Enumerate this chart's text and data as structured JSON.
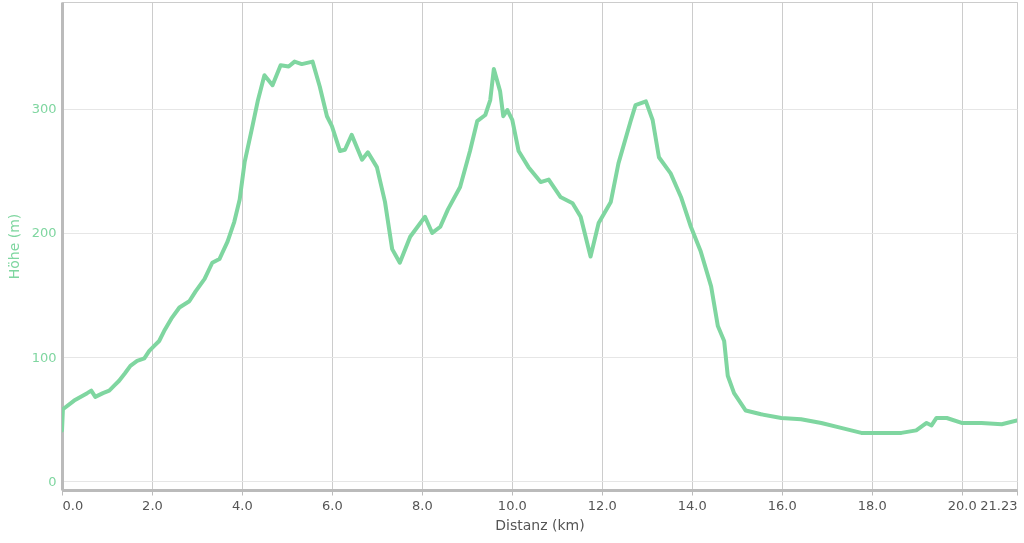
{
  "chart_data": {
    "type": "line",
    "xlabel": "Distanz (km)",
    "ylabel": "Höhe (m)",
    "grid": true,
    "marker": "none",
    "line_style": "solid",
    "xlim": [
      0,
      21.23
    ],
    "ylim": [
      -7,
      386
    ],
    "xticks": [
      {
        "value": 0,
        "label": "0.0"
      },
      {
        "value": 2,
        "label": "2.0"
      },
      {
        "value": 4,
        "label": "4.0"
      },
      {
        "value": 6,
        "label": "6.0"
      },
      {
        "value": 8,
        "label": "8.0"
      },
      {
        "value": 10,
        "label": "10.0"
      },
      {
        "value": 12,
        "label": "12.0"
      },
      {
        "value": 14,
        "label": "14.0"
      },
      {
        "value": 16,
        "label": "16.0"
      },
      {
        "value": 18,
        "label": "18.0"
      },
      {
        "value": 20,
        "label": "20.0"
      },
      21.23
    ],
    "yticks": [
      0,
      100,
      200,
      300
    ],
    "series": [
      {
        "color": "#7fd6a0",
        "x": [
          0,
          0.02,
          0.27,
          0.56,
          0.65,
          0.74,
          0.91,
          1.05,
          1.16,
          1.27,
          1.4,
          1.52,
          1.67,
          1.83,
          1.94,
          2.05,
          2.16,
          2.27,
          2.43,
          2.61,
          2.83,
          2.97,
          3.17,
          3.34,
          3.5,
          3.68,
          3.83,
          3.95,
          4.06,
          4.21,
          4.35,
          4.5,
          4.68,
          4.86,
          5.04,
          5.17,
          5.33,
          5.57,
          5.73,
          5.89,
          6.0,
          6.18,
          6.29,
          6.44,
          6.67,
          6.8,
          7.0,
          7.18,
          7.34,
          7.51,
          7.74,
          8.07,
          8.23,
          8.41,
          8.58,
          8.85,
          9.07,
          9.23,
          9.41,
          9.52,
          9.6,
          9.74,
          9.81,
          9.9,
          10.01,
          10.15,
          10.37,
          10.64,
          10.82,
          11.08,
          11.35,
          11.53,
          11.75,
          11.93,
          12.2,
          12.37,
          12.64,
          12.75,
          12.98,
          13.13,
          13.27,
          13.53,
          13.76,
          13.98,
          14.2,
          14.43,
          14.58,
          14.72,
          14.8,
          14.94,
          15.2,
          15.54,
          15.99,
          16.43,
          16.88,
          17.32,
          17.77,
          18.22,
          18.66,
          18.99,
          19.22,
          19.33,
          19.44,
          19.67,
          20.0,
          20.44,
          20.89,
          21.23
        ],
        "values": [
          41,
          58,
          65,
          71,
          73,
          68,
          71,
          73,
          77,
          81,
          87,
          93,
          97,
          99,
          105,
          109,
          113,
          121,
          131,
          140,
          145,
          153,
          163,
          176,
          179,
          193,
          209,
          227,
          257,
          282,
          306,
          327,
          319,
          335,
          334,
          338,
          336,
          338,
          318,
          294,
          286,
          266,
          267,
          279,
          259,
          265,
          253,
          225,
          187,
          176,
          197,
          213,
          200,
          205,
          219,
          237,
          266,
          290,
          295,
          307,
          332,
          314,
          294,
          299,
          291,
          266,
          253,
          241,
          243,
          229,
          224,
          213,
          181,
          208,
          225,
          256,
          290,
          303,
          306,
          291,
          261,
          248,
          229,
          205,
          185,
          157,
          125,
          113,
          85,
          71,
          57,
          54,
          51,
          50,
          47,
          43,
          39,
          39,
          39,
          41,
          47,
          45,
          51,
          51,
          47,
          47,
          46,
          49
        ]
      }
    ]
  }
}
